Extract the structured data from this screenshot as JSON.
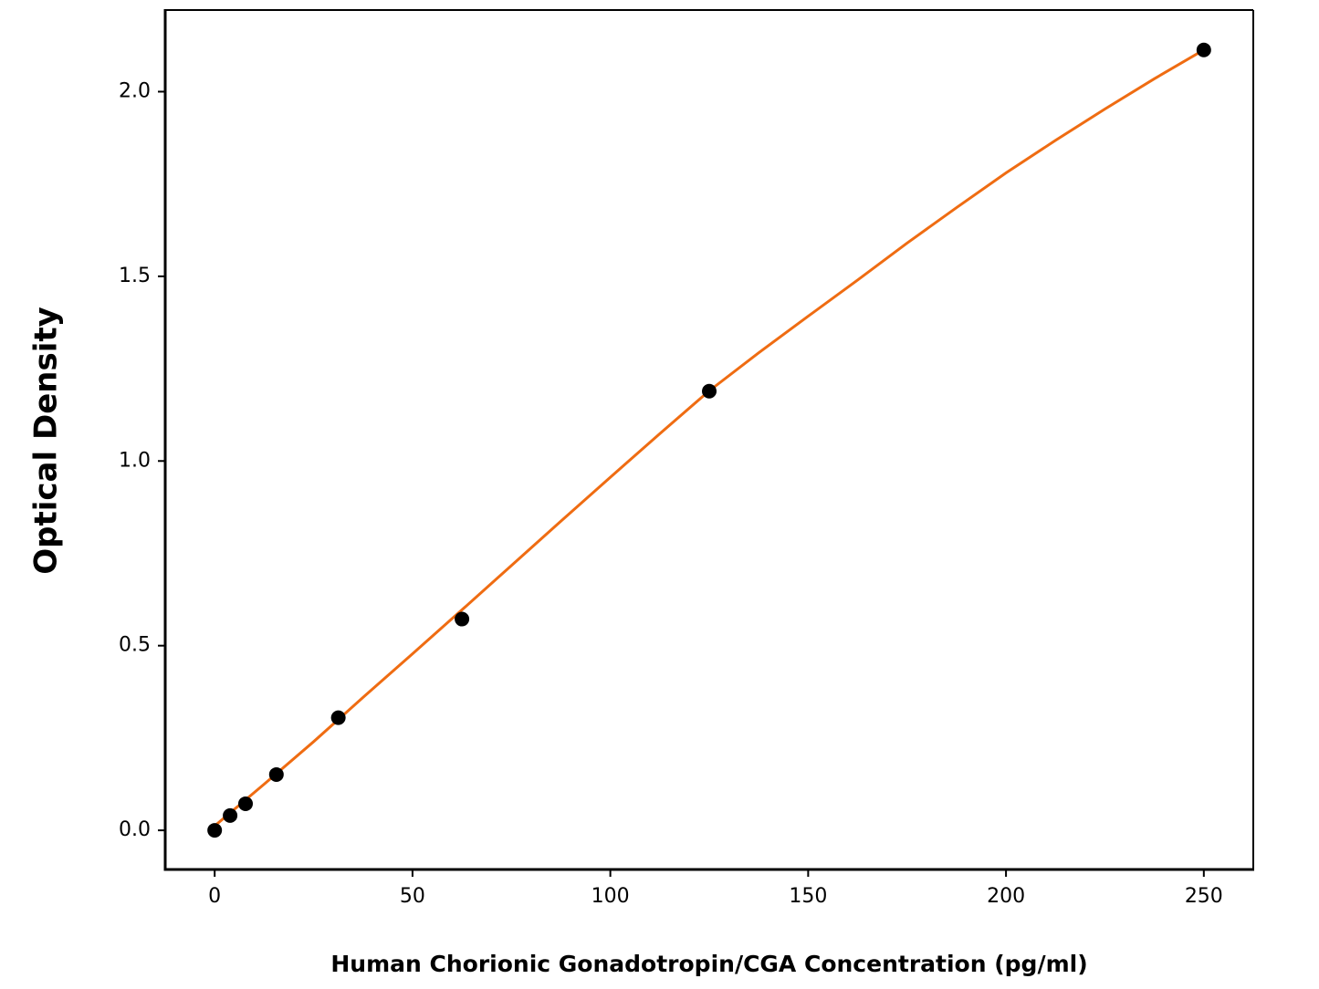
{
  "chart_data": {
    "type": "scatter",
    "xlabel": "Human Chorionic Gonadotropin/CGA Concentration (pg/ml)",
    "ylabel": "Optical Density",
    "xlim": [
      -12.5,
      262.5
    ],
    "ylim": [
      -0.106,
      2.221
    ],
    "xticks": [
      0,
      50,
      100,
      150,
      200,
      250
    ],
    "yticks": [
      {
        "value": 0,
        "label": "0.0"
      },
      {
        "value": 0.5,
        "label": "0.5"
      },
      {
        "value": 1,
        "label": "1.0"
      },
      {
        "value": 1.5,
        "label": "1.5"
      },
      {
        "value": 2,
        "label": "2.0"
      }
    ],
    "grid": false,
    "series": [
      {
        "type": "line",
        "color": "#ef6c12",
        "x": [
          0,
          12.5,
          25,
          37.5,
          50,
          62.5,
          75,
          87.5,
          100,
          112.5,
          125,
          137.5,
          150,
          162.5,
          175,
          187.5,
          200,
          212.5,
          225,
          237.5,
          250
        ],
        "values": [
          0.012,
          0.125,
          0.24,
          0.36,
          0.478,
          0.597,
          0.717,
          0.837,
          0.956,
          1.074,
          1.19,
          1.293,
          1.392,
          1.49,
          1.59,
          1.686,
          1.78,
          1.868,
          1.953,
          2.035,
          2.113
        ]
      },
      {
        "type": "scatter",
        "color": "#000000",
        "x": [
          0,
          3.9,
          7.8,
          15.6,
          31.25,
          62.5,
          125,
          250
        ],
        "values": [
          0.0,
          0.04,
          0.072,
          0.151,
          0.305,
          0.572,
          1.189,
          2.113
        ]
      }
    ]
  }
}
